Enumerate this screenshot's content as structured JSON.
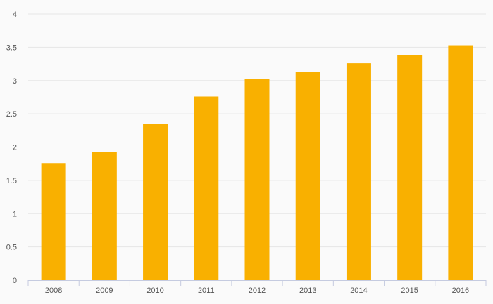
{
  "chart_data": {
    "type": "bar",
    "categories": [
      "2008",
      "2009",
      "2010",
      "2011",
      "2012",
      "2013",
      "2014",
      "2015",
      "2016"
    ],
    "values": [
      1.76,
      1.93,
      2.35,
      2.76,
      3.02,
      3.13,
      3.26,
      3.38,
      3.53
    ],
    "title": "",
    "xlabel": "",
    "ylabel": "",
    "ylim": [
      0,
      4
    ],
    "yticks": [
      "0",
      "0.5",
      "1",
      "1.5",
      "2",
      "2.5",
      "3",
      "3.5",
      "4"
    ],
    "grid": true,
    "legend": "none",
    "colors": {
      "bar": "#f9b000",
      "grid": "#e6e6e6",
      "axis": "#c5cbe0",
      "background": "#fafafa",
      "text": "#555555"
    }
  }
}
